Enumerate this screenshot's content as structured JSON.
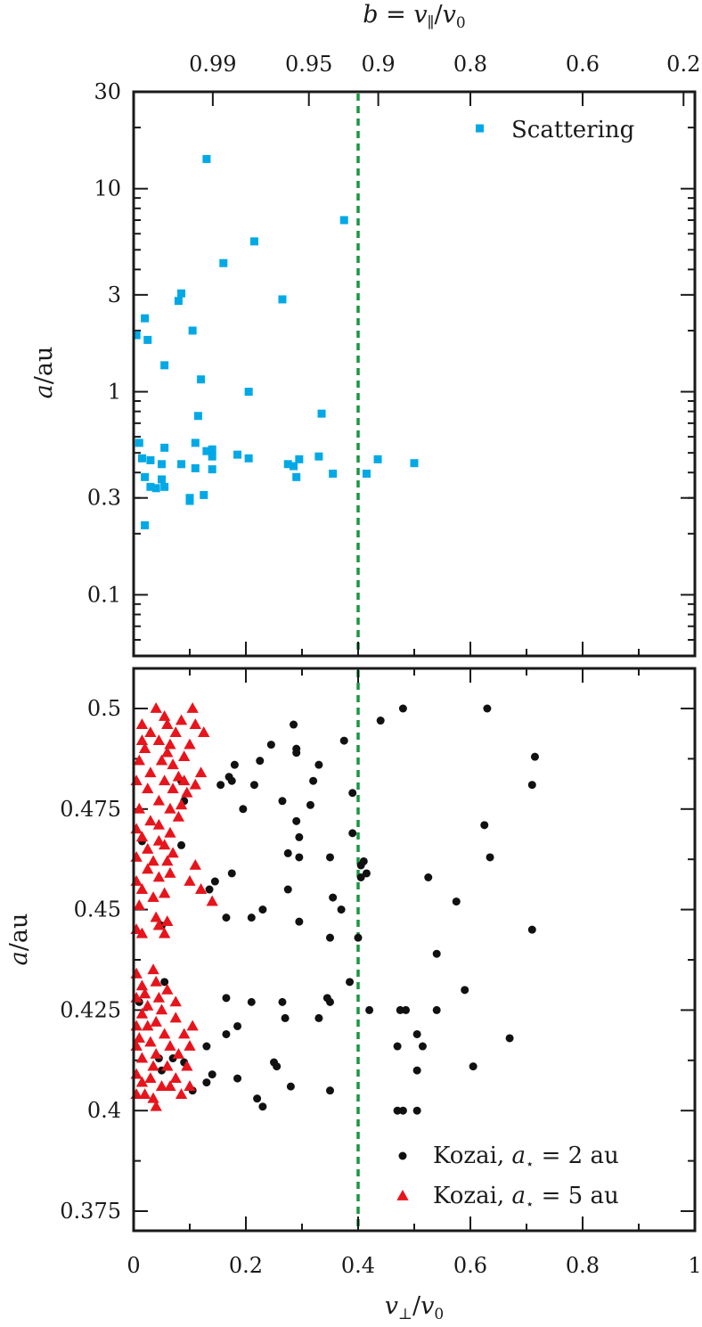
{
  "chart_data": [
    {
      "type": "scatter",
      "top_axis": {
        "label": "b = v∥/v0",
        "tick_labels": [
          "0.99",
          "0.95",
          "0.9",
          "0.8",
          "0.6",
          "0.2"
        ],
        "tick_values": [
          0.99,
          0.95,
          0.9,
          0.8,
          0.6,
          0.2
        ]
      },
      "ylabel": "a/au",
      "yscale": "log",
      "ylim": [
        0.05,
        30
      ],
      "yticks": [
        0.1,
        0.3,
        1,
        3,
        10,
        30
      ],
      "ytick_labels": [
        "0.1",
        "0.3",
        "1",
        "3",
        "10",
        "30"
      ],
      "xlim": [
        0,
        1
      ],
      "vline_x": 0.4,
      "legend_position": "top-right",
      "series": [
        {
          "name": "Scattering",
          "color": "#00a9e6",
          "marker": "square",
          "points": [
            [
              0.13,
              14.0
            ],
            [
              0.375,
              7.0
            ],
            [
              0.215,
              5.5
            ],
            [
              0.16,
              4.3
            ],
            [
              0.085,
              3.05
            ],
            [
              0.08,
              2.8
            ],
            [
              0.265,
              2.85
            ],
            [
              0.02,
              2.3
            ],
            [
              0.005,
              1.9
            ],
            [
              0.025,
              1.8
            ],
            [
              0.105,
              2.0
            ],
            [
              0.055,
              1.35
            ],
            [
              0.12,
              1.15
            ],
            [
              0.205,
              1.0
            ],
            [
              0.115,
              0.76
            ],
            [
              0.335,
              0.78
            ],
            [
              0.01,
              0.56
            ],
            [
              0.11,
              0.56
            ],
            [
              0.055,
              0.53
            ],
            [
              0.14,
              0.52
            ],
            [
              0.13,
              0.51
            ],
            [
              0.185,
              0.49
            ],
            [
              0.205,
              0.47
            ],
            [
              0.33,
              0.48
            ],
            [
              0.015,
              0.47
            ],
            [
              0.14,
              0.48
            ],
            [
              0.295,
              0.465
            ],
            [
              0.03,
              0.46
            ],
            [
              0.085,
              0.44
            ],
            [
              0.275,
              0.44
            ],
            [
              0.05,
              0.44
            ],
            [
              0.11,
              0.42
            ],
            [
              0.14,
              0.415
            ],
            [
              0.285,
              0.43
            ],
            [
              0.435,
              0.465
            ],
            [
              0.5,
              0.445
            ],
            [
              0.02,
              0.38
            ],
            [
              0.05,
              0.37
            ],
            [
              0.29,
              0.38
            ],
            [
              0.355,
              0.395
            ],
            [
              0.415,
              0.395
            ],
            [
              0.03,
              0.34
            ],
            [
              0.04,
              0.335
            ],
            [
              0.055,
              0.34
            ],
            [
              0.1,
              0.3
            ],
            [
              0.125,
              0.31
            ],
            [
              0.1,
              0.29
            ],
            [
              0.02,
              0.22
            ]
          ]
        }
      ]
    },
    {
      "type": "scatter",
      "xlabel": "v⊥/v0",
      "ylabel": "a/au",
      "xlim": [
        0,
        1
      ],
      "ylim": [
        0.37,
        0.508
      ],
      "xticks": [
        0,
        0.2,
        0.4,
        0.6,
        0.8,
        1
      ],
      "xtick_labels": [
        "0",
        "0.2",
        "0.4",
        "0.6",
        "0.8",
        "1"
      ],
      "yticks": [
        0.375,
        0.4,
        0.425,
        0.45,
        0.475,
        0.5
      ],
      "ytick_labels": [
        "0.375",
        "0.4",
        "0.425",
        "0.45",
        "0.475",
        "0.5"
      ],
      "vline_x": 0.4,
      "legend_position": "bottom-right",
      "series": [
        {
          "name": "Kozai, a⋆ = 2 au",
          "legend_parts": [
            "Kozai, ",
            "a",
            "⋆",
            " = 2 au"
          ],
          "color": "#111111",
          "marker": "circle",
          "points": [
            [
              0.48,
              0.5
            ],
            [
              0.63,
              0.5
            ],
            [
              0.44,
              0.497
            ],
            [
              0.285,
              0.496
            ],
            [
              0.245,
              0.491
            ],
            [
              0.29,
              0.49
            ],
            [
              0.375,
              0.492
            ],
            [
              0.715,
              0.488
            ],
            [
              0.225,
              0.487
            ],
            [
              0.18,
              0.486
            ],
            [
              0.33,
              0.486
            ],
            [
              0.29,
              0.489
            ],
            [
              0.17,
              0.483
            ],
            [
              0.175,
              0.482
            ],
            [
              0.155,
              0.481
            ],
            [
              0.215,
              0.481
            ],
            [
              0.32,
              0.482
            ],
            [
              0.085,
              0.482
            ],
            [
              0.71,
              0.481
            ],
            [
              0.39,
              0.479
            ],
            [
              0.09,
              0.477
            ],
            [
              0.265,
              0.477
            ],
            [
              0.315,
              0.476
            ],
            [
              0.195,
              0.475
            ],
            [
              0.29,
              0.472
            ],
            [
              0.625,
              0.471
            ],
            [
              0.39,
              0.469
            ],
            [
              0.295,
              0.468
            ],
            [
              0.015,
              0.467
            ],
            [
              0.085,
              0.466
            ],
            [
              0.275,
              0.464
            ],
            [
              0.35,
              0.463
            ],
            [
              0.295,
              0.463
            ],
            [
              0.635,
              0.463
            ],
            [
              0.41,
              0.462
            ],
            [
              0.405,
              0.461
            ],
            [
              0.175,
              0.459
            ],
            [
              0.415,
              0.459
            ],
            [
              0.405,
              0.458
            ],
            [
              0.525,
              0.458
            ],
            [
              0.145,
              0.457
            ],
            [
              0.135,
              0.455
            ],
            [
              0.275,
              0.455
            ],
            [
              0.355,
              0.453
            ],
            [
              0.575,
              0.452
            ],
            [
              0.23,
              0.45
            ],
            [
              0.37,
              0.45
            ],
            [
              0.165,
              0.448
            ],
            [
              0.21,
              0.448
            ],
            [
              0.295,
              0.447
            ],
            [
              0.05,
              0.446
            ],
            [
              0.71,
              0.445
            ],
            [
              0.35,
              0.443
            ],
            [
              0.4,
              0.443
            ],
            [
              0.54,
              0.439
            ],
            [
              0.385,
              0.432
            ],
            [
              0.055,
              0.432
            ],
            [
              0.59,
              0.43
            ],
            [
              0.165,
              0.428
            ],
            [
              0.21,
              0.427
            ],
            [
              0.265,
              0.427
            ],
            [
              0.345,
              0.428
            ],
            [
              0.35,
              0.427
            ],
            [
              0.01,
              0.427
            ],
            [
              0.42,
              0.425
            ],
            [
              0.475,
              0.425
            ],
            [
              0.485,
              0.425
            ],
            [
              0.54,
              0.425
            ],
            [
              0.27,
              0.423
            ],
            [
              0.33,
              0.423
            ],
            [
              0.185,
              0.421
            ],
            [
              0.165,
              0.419
            ],
            [
              0.505,
              0.419
            ],
            [
              0.67,
              0.418
            ],
            [
              0.47,
              0.416
            ],
            [
              0.515,
              0.416
            ],
            [
              0.13,
              0.416
            ],
            [
              0.07,
              0.413
            ],
            [
              0.09,
              0.412
            ],
            [
              0.045,
              0.413
            ],
            [
              0.25,
              0.412
            ],
            [
              0.255,
              0.411
            ],
            [
              0.605,
              0.411
            ],
            [
              0.505,
              0.41
            ],
            [
              0.05,
              0.41
            ],
            [
              0.14,
              0.409
            ],
            [
              0.185,
              0.408
            ],
            [
              0.13,
              0.407
            ],
            [
              0.28,
              0.406
            ],
            [
              0.35,
              0.405
            ],
            [
              0.105,
              0.405
            ],
            [
              0.22,
              0.403
            ],
            [
              0.23,
              0.401
            ],
            [
              0.47,
              0.4
            ],
            [
              0.48,
              0.4
            ],
            [
              0.505,
              0.4
            ]
          ]
        },
        {
          "name": "Kozai, a⋆ = 5 au",
          "legend_parts": [
            "Kozai, ",
            "a",
            "⋆",
            " = 5 au"
          ],
          "color": "#e8141c",
          "marker": "triangle",
          "points": [
            [
              0.04,
              0.5
            ],
            [
              0.105,
              0.5
            ],
            [
              0.055,
              0.498
            ],
            [
              0.085,
              0.497
            ],
            [
              0.015,
              0.496
            ],
            [
              0.06,
              0.496
            ],
            [
              0.11,
              0.496
            ],
            [
              0.03,
              0.494
            ],
            [
              0.075,
              0.494
            ],
            [
              0.125,
              0.494
            ],
            [
              0.015,
              0.492
            ],
            [
              0.045,
              0.492
            ],
            [
              0.065,
              0.491
            ],
            [
              0.1,
              0.491
            ],
            [
              0.02,
              0.49
            ],
            [
              0.06,
              0.489
            ],
            [
              0.09,
              0.488
            ],
            [
              0.01,
              0.487
            ],
            [
              0.05,
              0.487
            ],
            [
              0.07,
              0.486
            ],
            [
              0.03,
              0.484
            ],
            [
              0.08,
              0.483
            ],
            [
              0.12,
              0.484
            ],
            [
              0.005,
              0.482
            ],
            [
              0.055,
              0.482
            ],
            [
              0.09,
              0.482
            ],
            [
              0.11,
              0.481
            ],
            [
              0.025,
              0.48
            ],
            [
              0.07,
              0.48
            ],
            [
              0.095,
              0.479
            ],
            [
              0.045,
              0.477
            ],
            [
              0.01,
              0.475
            ],
            [
              0.065,
              0.475
            ],
            [
              0.085,
              0.476
            ],
            [
              0.03,
              0.472
            ],
            [
              0.045,
              0.471
            ],
            [
              0.08,
              0.473
            ],
            [
              0.005,
              0.47
            ],
            [
              0.065,
              0.469
            ],
            [
              0.015,
              0.468
            ],
            [
              0.045,
              0.467
            ],
            [
              0.055,
              0.466
            ],
            [
              0.025,
              0.465
            ],
            [
              0.07,
              0.464
            ],
            [
              0.005,
              0.463
            ],
            [
              0.035,
              0.462
            ],
            [
              0.06,
              0.462
            ],
            [
              0.11,
              0.461
            ],
            [
              0.025,
              0.46
            ],
            [
              0.045,
              0.458
            ],
            [
              0.065,
              0.459
            ],
            [
              0.005,
              0.457
            ],
            [
              0.1,
              0.457
            ],
            [
              0.015,
              0.455
            ],
            [
              0.12,
              0.455
            ],
            [
              0.035,
              0.453
            ],
            [
              0.055,
              0.454
            ],
            [
              0.01,
              0.451
            ],
            [
              0.14,
              0.452
            ],
            [
              0.04,
              0.448
            ],
            [
              0.06,
              0.447
            ],
            [
              0.045,
              0.446
            ],
            [
              0.005,
              0.445
            ],
            [
              0.015,
              0.444
            ],
            [
              0.055,
              0.444
            ],
            [
              0.035,
              0.435
            ],
            [
              0.005,
              0.434
            ],
            [
              0.04,
              0.432
            ],
            [
              0.015,
              0.431
            ],
            [
              0.06,
              0.43
            ],
            [
              0.02,
              0.429
            ],
            [
              0.045,
              0.428
            ],
            [
              0.005,
              0.428
            ],
            [
              0.075,
              0.427
            ],
            [
              0.025,
              0.426
            ],
            [
              0.05,
              0.425
            ],
            [
              0.015,
              0.424
            ],
            [
              0.075,
              0.423
            ],
            [
              0.04,
              0.422
            ],
            [
              0.025,
              0.421
            ],
            [
              0.005,
              0.421
            ],
            [
              0.105,
              0.421
            ],
            [
              0.055,
              0.419
            ],
            [
              0.01,
              0.418
            ],
            [
              0.09,
              0.419
            ],
            [
              0.03,
              0.417
            ],
            [
              0.065,
              0.416
            ],
            [
              0.005,
              0.416
            ],
            [
              0.1,
              0.416
            ],
            [
              0.04,
              0.414
            ],
            [
              0.08,
              0.414
            ],
            [
              0.015,
              0.413
            ],
            [
              0.035,
              0.411
            ],
            [
              0.06,
              0.411
            ],
            [
              0.095,
              0.411
            ],
            [
              0.005,
              0.409
            ],
            [
              0.03,
              0.408
            ],
            [
              0.075,
              0.408
            ],
            [
              0.015,
              0.407
            ],
            [
              0.05,
              0.406
            ],
            [
              0.1,
              0.406
            ],
            [
              0.065,
              0.406
            ],
            [
              0.02,
              0.404
            ],
            [
              0.085,
              0.404
            ],
            [
              0.005,
              0.404
            ],
            [
              0.035,
              0.403
            ],
            [
              0.04,
              0.401
            ]
          ]
        }
      ]
    }
  ],
  "axes_text": {
    "top_b": "b",
    "top_eq": " = ",
    "top_vpar": "v",
    "top_par_sub": "∥",
    "top_slash": "/",
    "top_v0": "v",
    "top_v0_sub": "0",
    "ylab_a": "a",
    "ylab_rest": "/au",
    "xlab_v": "v",
    "xlab_perp_sub": "⊥",
    "xlab_slash": "/",
    "xlab_v0": "v",
    "xlab_v0_sub": "0"
  }
}
